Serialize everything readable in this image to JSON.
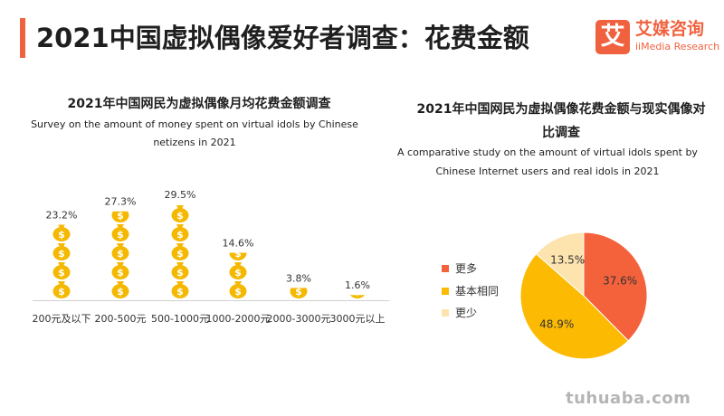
{
  "header": {
    "title": "2021中国虚拟偶像爱好者调查：花费金额",
    "logo_mark": "艾",
    "logo_cn": "艾媒咨询",
    "logo_en": "iiMedia Research"
  },
  "colors": {
    "accent": "#f0623f",
    "coin": "#f5b800",
    "more": "#f4623c",
    "same": "#fcba03",
    "less": "#fde3ad"
  },
  "chart_data": [
    {
      "type": "bar",
      "title": "2021年中国网民为虚拟偶像月均花费金额调查",
      "subtitle": "Survey on the amount of money spent on virtual idols by Chinese netizens in 2021",
      "categories": [
        "200元及以下",
        "200-500元",
        "500-1000元",
        "1000-2000元",
        "2000-3000元",
        "3000元以上"
      ],
      "values": [
        23.2,
        27.3,
        29.5,
        14.6,
        3.8,
        1.6
      ],
      "value_labels": [
        "23.2%",
        "27.3%",
        "29.5%",
        "14.6%",
        "3.8%",
        "1.6%"
      ],
      "icon": "money-bag-icon"
    },
    {
      "type": "pie",
      "title": "2021年中国网民为虚拟偶像花费金额与现实偶像对比调查",
      "subtitle": "A comparative study on the amount of virtual idols spent by Chinese Internet users and real idols in 2021",
      "labels": [
        "更多",
        "基本相同",
        "更少"
      ],
      "values": [
        37.6,
        48.9,
        13.5
      ],
      "value_labels": [
        "37.6%",
        "48.9%",
        "13.5%"
      ],
      "legend": "left"
    }
  ],
  "watermark": "tuhuaba.com"
}
